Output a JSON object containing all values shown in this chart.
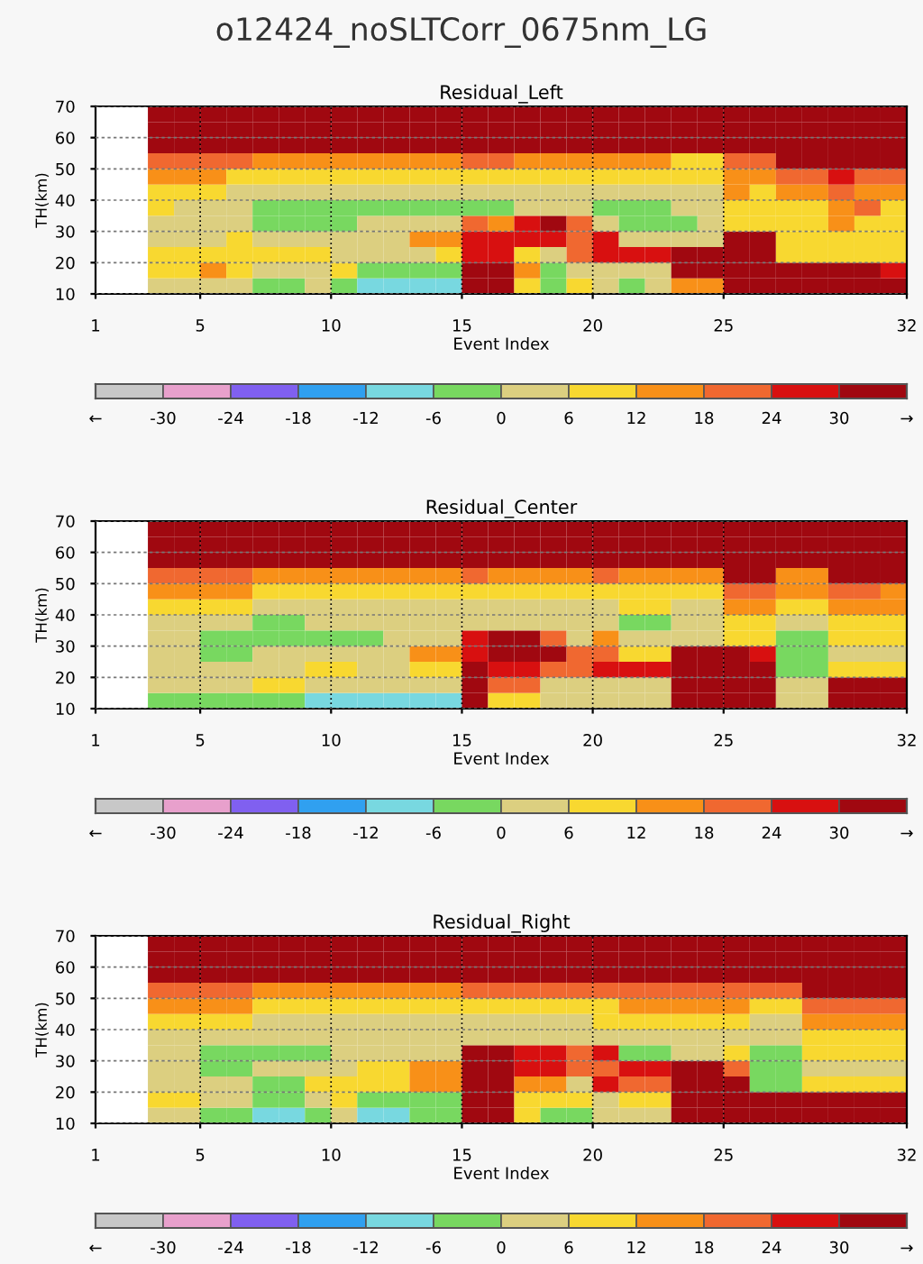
{
  "chart_data": [
    {
      "type": "heatmap",
      "title": "o12424_noSLTCorr_0675nm_LG",
      "subtitle": "Residual_Left",
      "xlabel": "Event Index",
      "ylabel": "TH(km)",
      "x": [
        1.5,
        2.5,
        3.5,
        4.5,
        5.5,
        6.5,
        7.5,
        8.5,
        9.5,
        10.5,
        11.5,
        12.5,
        13.5,
        14.5,
        15.5,
        16.5,
        17.5,
        18.5,
        19.5,
        20.5,
        21.5,
        22.5,
        23.5,
        24.5,
        25.5,
        26.5,
        27.5,
        28.5,
        29.5,
        30.5,
        31.5
      ],
      "cells": [
        [
          null,
          null,
          33,
          33,
          33,
          33,
          33,
          33,
          33,
          33,
          33,
          33,
          33,
          33,
          33,
          33,
          33,
          33,
          33,
          33,
          33,
          33,
          33,
          33,
          33,
          33,
          33,
          33,
          33,
          33,
          33
        ],
        [
          null,
          null,
          33,
          33,
          33,
          33,
          33,
          33,
          33,
          33,
          33,
          33,
          33,
          33,
          33,
          33,
          33,
          33,
          33,
          33,
          33,
          33,
          33,
          33,
          33,
          33,
          33,
          33,
          33,
          33,
          33
        ],
        [
          null,
          null,
          33,
          33,
          33,
          33,
          33,
          33,
          33,
          33,
          33,
          33,
          33,
          33,
          33,
          33,
          33,
          33,
          33,
          33,
          33,
          33,
          33,
          33,
          33,
          33,
          33,
          33,
          33,
          33,
          33
        ],
        [
          null,
          null,
          21,
          21,
          21,
          21,
          15,
          15,
          15,
          15,
          15,
          15,
          15,
          15,
          21,
          21,
          15,
          15,
          15,
          15,
          15,
          15,
          9,
          9,
          21,
          21,
          33,
          33,
          33,
          33,
          33
        ],
        [
          null,
          null,
          15,
          15,
          15,
          9,
          9,
          9,
          9,
          9,
          9,
          9,
          9,
          9,
          9,
          9,
          9,
          9,
          9,
          9,
          9,
          9,
          9,
          9,
          15,
          15,
          21,
          21,
          27,
          21,
          21
        ],
        [
          null,
          null,
          9,
          9,
          9,
          3,
          3,
          3,
          3,
          3,
          3,
          3,
          3,
          3,
          3,
          3,
          3,
          3,
          3,
          3,
          3,
          3,
          3,
          3,
          15,
          9,
          15,
          15,
          21,
          15,
          15
        ],
        [
          null,
          null,
          9,
          3,
          3,
          3,
          -3,
          -3,
          -3,
          -3,
          -3,
          -3,
          -3,
          -3,
          -3,
          -3,
          3,
          3,
          3,
          -3,
          -3,
          -3,
          3,
          3,
          9,
          9,
          9,
          9,
          15,
          21,
          9
        ],
        [
          null,
          null,
          3,
          3,
          3,
          3,
          -3,
          -3,
          -3,
          -3,
          3,
          3,
          3,
          3,
          21,
          15,
          27,
          33,
          21,
          3,
          -3,
          -3,
          -3,
          3,
          9,
          9,
          9,
          9,
          15,
          9,
          9
        ],
        [
          null,
          null,
          3,
          3,
          3,
          9,
          3,
          3,
          3,
          3,
          3,
          3,
          15,
          15,
          27,
          27,
          27,
          27,
          21,
          27,
          3,
          3,
          3,
          3,
          33,
          33,
          9,
          9,
          9,
          9,
          9
        ],
        [
          null,
          null,
          9,
          9,
          9,
          9,
          9,
          9,
          9,
          3,
          3,
          3,
          3,
          9,
          27,
          27,
          9,
          3,
          21,
          27,
          27,
          27,
          33,
          33,
          33,
          33,
          9,
          9,
          9,
          9,
          9
        ],
        [
          null,
          null,
          9,
          9,
          15,
          9,
          3,
          3,
          3,
          9,
          -3,
          -3,
          -3,
          -3,
          33,
          33,
          15,
          -3,
          3,
          3,
          3,
          3,
          33,
          33,
          33,
          33,
          33,
          33,
          33,
          33,
          27
        ],
        [
          null,
          null,
          3,
          3,
          3,
          3,
          -3,
          -3,
          3,
          -3,
          -9,
          -9,
          -9,
          -9,
          33,
          33,
          9,
          -3,
          9,
          3,
          -3,
          3,
          15,
          15,
          33,
          33,
          33,
          33,
          33,
          33,
          33
        ]
      ],
      "xlim": [
        1,
        32
      ],
      "ylim": [
        10,
        70
      ],
      "xticks": [
        1,
        5,
        10,
        15,
        20,
        25,
        32
      ],
      "yticks": [
        10,
        20,
        30,
        40,
        50,
        60,
        70
      ],
      "clim": [
        -36,
        36
      ],
      "cticks": [
        -30,
        -24,
        -18,
        -12,
        -6,
        0,
        6,
        12,
        18,
        24,
        30
      ],
      "annotations": [
        "←",
        "→"
      ],
      "colors": [
        "#c8c8c8",
        "#e8a0cc",
        "#8060f0",
        "#30a0f0",
        "#78d8e0",
        "#78d860",
        "#dccf80",
        "#f8d830",
        "#f89018",
        "#f06830",
        "#d81010",
        "#a00810"
      ],
      "grid": true
    },
    {
      "type": "heatmap",
      "title": "Residual_Center",
      "xlabel": "Event Index",
      "ylabel": "TH(km)",
      "x": [
        1.5,
        2.5,
        3.5,
        4.5,
        5.5,
        6.5,
        7.5,
        8.5,
        9.5,
        10.5,
        11.5,
        12.5,
        13.5,
        14.5,
        15.5,
        16.5,
        17.5,
        18.5,
        19.5,
        20.5,
        21.5,
        22.5,
        23.5,
        24.5,
        25.5,
        26.5,
        27.5,
        28.5,
        29.5,
        30.5,
        31.5
      ],
      "cells": [
        [
          null,
          null,
          33,
          33,
          33,
          33,
          33,
          33,
          33,
          33,
          33,
          33,
          33,
          33,
          33,
          33,
          33,
          33,
          33,
          33,
          33,
          33,
          33,
          33,
          33,
          33,
          33,
          33,
          33,
          33,
          33
        ],
        [
          null,
          null,
          33,
          33,
          33,
          33,
          33,
          33,
          33,
          33,
          33,
          33,
          33,
          33,
          33,
          33,
          33,
          33,
          33,
          33,
          33,
          33,
          33,
          33,
          33,
          33,
          33,
          33,
          33,
          33,
          33
        ],
        [
          null,
          null,
          33,
          33,
          33,
          33,
          33,
          33,
          33,
          33,
          33,
          33,
          33,
          33,
          33,
          33,
          33,
          33,
          33,
          33,
          33,
          33,
          33,
          33,
          33,
          33,
          33,
          33,
          33,
          33,
          33
        ],
        [
          null,
          null,
          21,
          21,
          21,
          21,
          15,
          15,
          15,
          15,
          15,
          15,
          15,
          15,
          21,
          15,
          15,
          15,
          15,
          21,
          15,
          15,
          15,
          15,
          33,
          33,
          15,
          15,
          33,
          33,
          33
        ],
        [
          null,
          null,
          15,
          15,
          15,
          15,
          9,
          9,
          9,
          9,
          9,
          9,
          9,
          9,
          9,
          9,
          9,
          9,
          9,
          9,
          9,
          9,
          9,
          9,
          21,
          21,
          15,
          15,
          21,
          21,
          15
        ],
        [
          null,
          null,
          9,
          9,
          9,
          9,
          3,
          3,
          3,
          3,
          3,
          3,
          3,
          3,
          3,
          3,
          3,
          3,
          3,
          3,
          9,
          9,
          3,
          3,
          15,
          15,
          9,
          9,
          15,
          15,
          15
        ],
        [
          null,
          null,
          3,
          3,
          3,
          3,
          -3,
          -3,
          3,
          3,
          3,
          3,
          3,
          3,
          3,
          3,
          3,
          3,
          3,
          3,
          -3,
          -3,
          3,
          3,
          9,
          9,
          3,
          3,
          9,
          9,
          9
        ],
        [
          null,
          null,
          3,
          3,
          -3,
          -3,
          -3,
          -3,
          -3,
          -3,
          -3,
          3,
          3,
          3,
          27,
          33,
          33,
          21,
          3,
          15,
          3,
          3,
          3,
          3,
          9,
          9,
          -3,
          -3,
          9,
          9,
          9
        ],
        [
          null,
          null,
          3,
          3,
          -3,
          -3,
          3,
          3,
          3,
          3,
          3,
          3,
          15,
          15,
          27,
          33,
          33,
          33,
          21,
          21,
          9,
          9,
          33,
          33,
          33,
          27,
          -3,
          -3,
          3,
          3,
          3
        ],
        [
          null,
          null,
          3,
          3,
          3,
          3,
          3,
          3,
          9,
          9,
          3,
          3,
          9,
          9,
          33,
          27,
          27,
          21,
          21,
          27,
          27,
          27,
          33,
          33,
          33,
          33,
          -3,
          -3,
          9,
          9,
          9
        ],
        [
          null,
          null,
          3,
          3,
          3,
          3,
          9,
          9,
          3,
          3,
          3,
          3,
          3,
          3,
          33,
          21,
          21,
          3,
          3,
          3,
          3,
          3,
          33,
          33,
          33,
          33,
          3,
          3,
          33,
          33,
          33
        ],
        [
          null,
          null,
          -3,
          -3,
          -3,
          -3,
          -3,
          -3,
          -9,
          -9,
          -9,
          -9,
          -9,
          -9,
          33,
          9,
          9,
          3,
          3,
          3,
          3,
          3,
          33,
          33,
          33,
          33,
          3,
          3,
          33,
          33,
          33
        ]
      ],
      "xlim": [
        1,
        32
      ],
      "ylim": [
        10,
        70
      ],
      "xticks": [
        1,
        5,
        10,
        15,
        20,
        25,
        32
      ],
      "yticks": [
        10,
        20,
        30,
        40,
        50,
        60,
        70
      ],
      "clim": [
        -36,
        36
      ],
      "cticks": [
        -30,
        -24,
        -18,
        -12,
        -6,
        0,
        6,
        12,
        18,
        24,
        30
      ],
      "annotations": [
        "←",
        "→"
      ],
      "colors": [
        "#c8c8c8",
        "#e8a0cc",
        "#8060f0",
        "#30a0f0",
        "#78d8e0",
        "#78d860",
        "#dccf80",
        "#f8d830",
        "#f89018",
        "#f06830",
        "#d81010",
        "#a00810"
      ],
      "grid": true
    },
    {
      "type": "heatmap",
      "title": "Residual_Right",
      "xlabel": "Event Index",
      "ylabel": "TH(km)",
      "x": [
        1.5,
        2.5,
        3.5,
        4.5,
        5.5,
        6.5,
        7.5,
        8.5,
        9.5,
        10.5,
        11.5,
        12.5,
        13.5,
        14.5,
        15.5,
        16.5,
        17.5,
        18.5,
        19.5,
        20.5,
        21.5,
        22.5,
        23.5,
        24.5,
        25.5,
        26.5,
        27.5,
        28.5,
        29.5,
        30.5,
        31.5
      ],
      "cells": [
        [
          null,
          null,
          33,
          33,
          33,
          33,
          33,
          33,
          33,
          33,
          33,
          33,
          33,
          33,
          33,
          33,
          33,
          33,
          33,
          33,
          33,
          33,
          33,
          33,
          33,
          33,
          33,
          33,
          33,
          33,
          33
        ],
        [
          null,
          null,
          33,
          33,
          33,
          33,
          33,
          33,
          33,
          33,
          33,
          33,
          33,
          33,
          33,
          33,
          33,
          33,
          33,
          33,
          33,
          33,
          33,
          33,
          33,
          33,
          33,
          33,
          33,
          33,
          33
        ],
        [
          null,
          null,
          33,
          33,
          33,
          33,
          33,
          33,
          33,
          33,
          33,
          33,
          33,
          33,
          33,
          33,
          33,
          33,
          33,
          33,
          33,
          33,
          33,
          33,
          33,
          33,
          33,
          33,
          33,
          33,
          33
        ],
        [
          null,
          null,
          21,
          21,
          21,
          21,
          15,
          15,
          15,
          15,
          15,
          15,
          15,
          15,
          21,
          21,
          21,
          21,
          21,
          21,
          21,
          21,
          21,
          21,
          21,
          21,
          21,
          33,
          33,
          33,
          33
        ],
        [
          null,
          null,
          15,
          15,
          15,
          15,
          9,
          9,
          9,
          9,
          9,
          9,
          9,
          9,
          9,
          9,
          9,
          9,
          9,
          9,
          15,
          15,
          15,
          15,
          15,
          9,
          9,
          21,
          21,
          21,
          21
        ],
        [
          null,
          null,
          9,
          9,
          9,
          9,
          3,
          3,
          3,
          3,
          3,
          3,
          3,
          3,
          3,
          3,
          3,
          3,
          3,
          9,
          9,
          9,
          9,
          9,
          9,
          3,
          3,
          15,
          15,
          15,
          15
        ],
        [
          null,
          null,
          3,
          3,
          3,
          3,
          3,
          3,
          3,
          3,
          3,
          3,
          3,
          3,
          3,
          3,
          3,
          3,
          3,
          3,
          3,
          3,
          3,
          3,
          3,
          3,
          3,
          9,
          9,
          9,
          9
        ],
        [
          null,
          null,
          3,
          3,
          -3,
          -3,
          -3,
          -3,
          -3,
          3,
          3,
          3,
          3,
          3,
          33,
          33,
          27,
          27,
          21,
          27,
          -3,
          -3,
          3,
          3,
          9,
          -3,
          -3,
          9,
          9,
          9,
          9
        ],
        [
          null,
          null,
          3,
          3,
          -3,
          -3,
          3,
          3,
          3,
          3,
          9,
          9,
          15,
          15,
          33,
          33,
          27,
          27,
          21,
          21,
          27,
          27,
          33,
          33,
          21,
          -3,
          -3,
          3,
          3,
          3,
          3
        ],
        [
          null,
          null,
          3,
          3,
          3,
          3,
          -3,
          -3,
          9,
          9,
          9,
          9,
          15,
          15,
          33,
          33,
          15,
          15,
          3,
          27,
          21,
          21,
          33,
          33,
          33,
          -3,
          -3,
          9,
          9,
          9,
          9
        ],
        [
          null,
          null,
          9,
          9,
          3,
          3,
          -3,
          -3,
          3,
          9,
          -3,
          -3,
          -3,
          -3,
          33,
          33,
          9,
          9,
          9,
          3,
          9,
          9,
          33,
          33,
          33,
          33,
          33,
          33,
          33,
          33,
          33
        ],
        [
          null,
          null,
          3,
          3,
          -3,
          -3,
          -9,
          -9,
          -3,
          3,
          -9,
          -9,
          -3,
          -3,
          33,
          33,
          9,
          -3,
          -3,
          3,
          3,
          3,
          33,
          33,
          33,
          33,
          33,
          33,
          33,
          33,
          33
        ]
      ],
      "xlim": [
        1,
        32
      ],
      "ylim": [
        10,
        70
      ],
      "xticks": [
        1,
        5,
        10,
        15,
        20,
        25,
        32
      ],
      "yticks": [
        10,
        20,
        30,
        40,
        50,
        60,
        70
      ],
      "clim": [
        -36,
        36
      ],
      "cticks": [
        -30,
        -24,
        -18,
        -12,
        -6,
        0,
        6,
        12,
        18,
        24,
        30
      ],
      "annotations": [
        "←",
        "→"
      ],
      "colors": [
        "#c8c8c8",
        "#e8a0cc",
        "#8060f0",
        "#30a0f0",
        "#78d8e0",
        "#78d860",
        "#dccf80",
        "#f8d830",
        "#f89018",
        "#f06830",
        "#d81010",
        "#a00810"
      ],
      "grid": true
    }
  ]
}
